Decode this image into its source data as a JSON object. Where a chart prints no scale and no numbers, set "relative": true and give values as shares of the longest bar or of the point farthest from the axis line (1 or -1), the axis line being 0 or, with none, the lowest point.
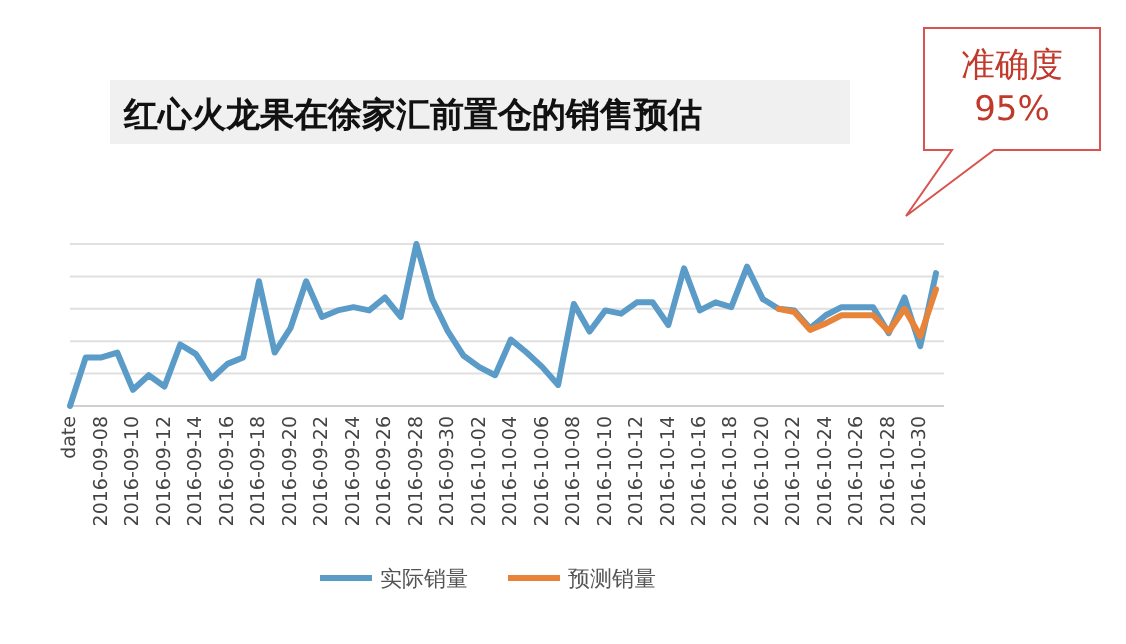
{
  "chart_data": {
    "type": "line",
    "title": "红心火龙果在徐家汇前置仓的销售预估",
    "relative": true,
    "grid": "y",
    "legend": "bottom",
    "categories": [
      "date",
      null,
      "2016-09-08",
      null,
      "2016-09-10",
      null,
      "2016-09-12",
      null,
      "2016-09-14",
      null,
      "2016-09-16",
      null,
      "2016-09-18",
      null,
      "2016-09-20",
      null,
      "2016-09-22",
      null,
      "2016-09-24",
      null,
      "2016-09-26",
      null,
      "2016-09-28",
      null,
      "2016-09-30",
      null,
      "2016-10-02",
      null,
      "2016-10-04",
      null,
      "2016-10-06",
      null,
      "2016-10-08",
      null,
      "2016-10-10",
      null,
      "2016-10-12",
      null,
      "2016-10-14",
      null,
      "2016-10-16",
      null,
      "2016-10-18",
      null,
      "2016-10-20",
      null,
      "2016-10-22",
      null,
      "2016-10-24",
      null,
      "2016-10-26",
      null,
      "2016-10-28",
      null,
      "2016-10-30",
      null
    ],
    "series": [
      {
        "name": "实际销量",
        "color": "#5b9bc8",
        "values": [
          0,
          0.3,
          0.3,
          0.33,
          0.1,
          0.19,
          0.12,
          0.38,
          0.32,
          0.17,
          0.26,
          0.3,
          0.77,
          0.33,
          0.48,
          0.77,
          0.55,
          0.59,
          0.61,
          0.59,
          0.67,
          0.55,
          1.0,
          0.66,
          0.46,
          0.31,
          0.24,
          0.19,
          0.41,
          0.33,
          0.24,
          0.13,
          0.63,
          0.46,
          0.59,
          0.57,
          0.64,
          0.64,
          0.5,
          0.85,
          0.59,
          0.64,
          0.61,
          0.86,
          0.66,
          0.6,
          0.59,
          0.48,
          0.56,
          0.61,
          0.61,
          0.61,
          0.45,
          0.67,
          0.37,
          0.82
        ]
      },
      {
        "name": "预测销量",
        "color": "#e8843a",
        "values": [
          null,
          null,
          null,
          null,
          null,
          null,
          null,
          null,
          null,
          null,
          null,
          null,
          null,
          null,
          null,
          null,
          null,
          null,
          null,
          null,
          null,
          null,
          null,
          null,
          null,
          null,
          null,
          null,
          null,
          null,
          null,
          null,
          null,
          null,
          null,
          null,
          null,
          null,
          null,
          null,
          null,
          null,
          null,
          null,
          null,
          0.6,
          0.58,
          0.47,
          0.51,
          0.56,
          0.56,
          0.56,
          0.46,
          0.6,
          0.43,
          0.72
        ]
      }
    ],
    "annotations": [
      "准确度\n95%"
    ]
  }
}
